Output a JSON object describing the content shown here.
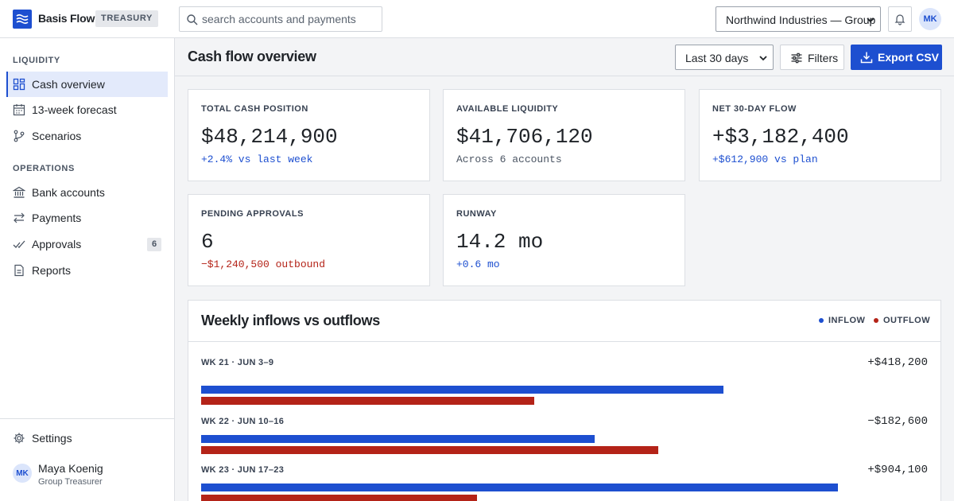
{
  "app": {
    "name": "Basis Flow",
    "badge": "TREASURY"
  },
  "search": {
    "placeholder": "search accounts and payments"
  },
  "org_selector": {
    "value": "Northwind Industries — Group"
  },
  "user": {
    "initials": "MK",
    "name": "Maya Koenig",
    "role": "Group Treasurer"
  },
  "sidebar": {
    "sections": [
      {
        "title": "LIQUIDITY",
        "items": [
          {
            "label": "Cash overview",
            "icon": "dashboard-icon",
            "active": true
          },
          {
            "label": "13-week forecast",
            "icon": "calendar-icon"
          },
          {
            "label": "Scenarios",
            "icon": "branch-icon"
          }
        ]
      },
      {
        "title": "OPERATIONS",
        "items": [
          {
            "label": "Bank accounts",
            "icon": "bank-icon"
          },
          {
            "label": "Payments",
            "icon": "transfer-icon"
          },
          {
            "label": "Approvals",
            "icon": "check-icon",
            "count": "6"
          },
          {
            "label": "Reports",
            "icon": "document-icon"
          }
        ]
      }
    ],
    "settings_label": "Settings"
  },
  "page": {
    "title": "Cash flow overview",
    "range": "Last 30 days",
    "filters_label": "Filters",
    "export_label": "Export CSV"
  },
  "kpis": [
    {
      "label": "TOTAL CASH POSITION",
      "value": "$48,214,900",
      "delta": "+2.4% vs last week",
      "tone": "positive"
    },
    {
      "label": "AVAILABLE LIQUIDITY",
      "value": "$41,706,120",
      "delta": "Across 6 accounts",
      "tone": "neutral"
    },
    {
      "label": "NET 30-DAY FLOW",
      "value": "+$3,182,400",
      "delta": "+$612,900 vs plan",
      "tone": "positive"
    },
    {
      "label": "PENDING APPROVALS",
      "value": "6",
      "delta": "−$1,240,500 outbound",
      "tone": "negative"
    },
    {
      "label": "RUNWAY",
      "value": "14.2 mo",
      "delta": "+0.6 mo",
      "tone": "positive"
    }
  ],
  "chart_data": {
    "type": "bar",
    "title": "Weekly inflows vs outflows",
    "legend": [
      {
        "name": "INFLOW",
        "color": "#1d4fd0"
      },
      {
        "name": "OUTFLOW",
        "color": "#b42318"
      }
    ],
    "categories": [
      "WK 21 · JUN 3–9",
      "WK 22 · JUN 10–16",
      "WK 23 · JUN 17–23"
    ],
    "net": [
      "+$418,200",
      "−$182,600",
      "+$904,100"
    ],
    "series": [
      {
        "name": "INFLOW",
        "values": [
          0.73,
          0.55,
          0.89
        ]
      },
      {
        "name": "OUTFLOW",
        "values": [
          0.466,
          0.639,
          0.385
        ]
      }
    ],
    "value_scale": "fraction of bar track (no axis printed)"
  }
}
